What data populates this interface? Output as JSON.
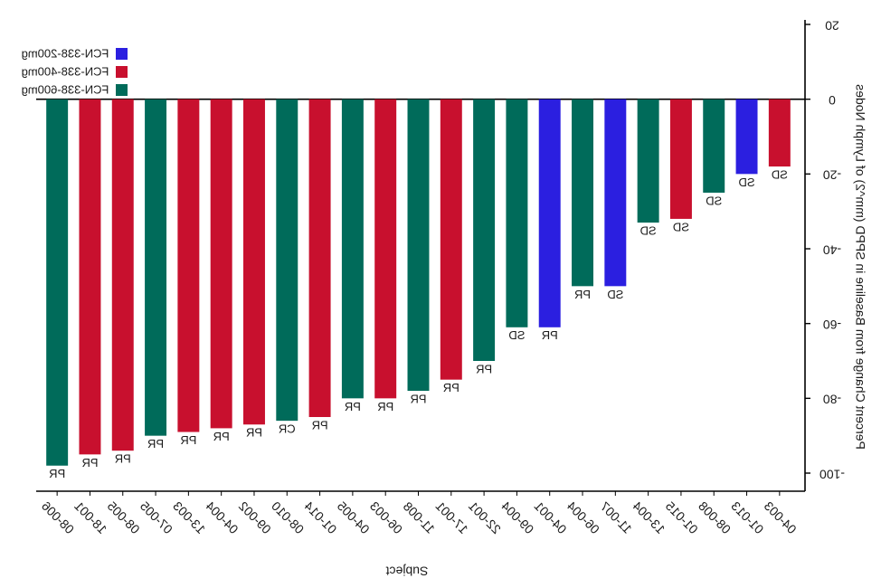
{
  "chart_data": {
    "type": "bar",
    "orientation": "mirrored",
    "ylabel": "Percent Change from Baseline in SPPD (mm^2) of Lymph Nodes",
    "xlabel": "Subject",
    "ylim": [
      -100,
      20
    ],
    "yticks": [
      20,
      0,
      -20,
      -40,
      -60,
      -80,
      -100
    ],
    "grid": false,
    "legend_position": "top-left",
    "colors": {
      "FCN-338-200mg": "#2b1fe0",
      "FCN-338-400mg": "#c8102e",
      "FCN-338-600mg": "#006b5a"
    },
    "legend": [
      "FCN-338-200mg",
      "FCN-338-400mg",
      "FCN-338-600mg"
    ],
    "bars": [
      {
        "subject": "08-006",
        "value": -98,
        "group": "FCN-338-600mg",
        "response": "PR"
      },
      {
        "subject": "18-001",
        "value": -95,
        "group": "FCN-338-400mg",
        "response": "PR"
      },
      {
        "subject": "08-005",
        "value": -94,
        "group": "FCN-338-400mg",
        "response": "PR"
      },
      {
        "subject": "07-005",
        "value": -90,
        "group": "FCN-338-600mg",
        "response": "PR"
      },
      {
        "subject": "13-003",
        "value": -89,
        "group": "FCN-338-400mg",
        "response": "PR"
      },
      {
        "subject": "04-004",
        "value": -88,
        "group": "FCN-338-400mg",
        "response": "PR"
      },
      {
        "subject": "09-002",
        "value": -87,
        "group": "FCN-338-400mg",
        "response": "PR"
      },
      {
        "subject": "08-010",
        "value": -86,
        "group": "FCN-338-600mg",
        "response": "CR"
      },
      {
        "subject": "01-014",
        "value": -85,
        "group": "FCN-338-400mg",
        "response": "PR"
      },
      {
        "subject": "04-005",
        "value": -80,
        "group": "FCN-338-600mg",
        "response": "PR"
      },
      {
        "subject": "06-003",
        "value": -80,
        "group": "FCN-338-400mg",
        "response": "PR"
      },
      {
        "subject": "11-008",
        "value": -78,
        "group": "FCN-338-600mg",
        "response": "PR"
      },
      {
        "subject": "17-001",
        "value": -75,
        "group": "FCN-338-400mg",
        "response": "PR"
      },
      {
        "subject": "22-001",
        "value": -70,
        "group": "FCN-338-600mg",
        "response": "PR"
      },
      {
        "subject": "09-004",
        "value": -61,
        "group": "FCN-338-600mg",
        "response": "SD"
      },
      {
        "subject": "04-001",
        "value": -61,
        "group": "FCN-338-200mg",
        "response": "PR"
      },
      {
        "subject": "06-004",
        "value": -50,
        "group": "FCN-338-600mg",
        "response": "PR"
      },
      {
        "subject": "11-007",
        "value": -50,
        "group": "FCN-338-200mg",
        "response": "SD"
      },
      {
        "subject": "13-004",
        "value": -33,
        "group": "FCN-338-600mg",
        "response": "SD"
      },
      {
        "subject": "01-015",
        "value": -32,
        "group": "FCN-338-400mg",
        "response": "SD"
      },
      {
        "subject": "08-008",
        "value": -25,
        "group": "FCN-338-600mg",
        "response": "SD"
      },
      {
        "subject": "01-013",
        "value": -20,
        "group": "FCN-338-200mg",
        "response": "SD"
      },
      {
        "subject": "04-003",
        "value": -18,
        "group": "FCN-338-400mg",
        "response": "SD"
      }
    ]
  }
}
